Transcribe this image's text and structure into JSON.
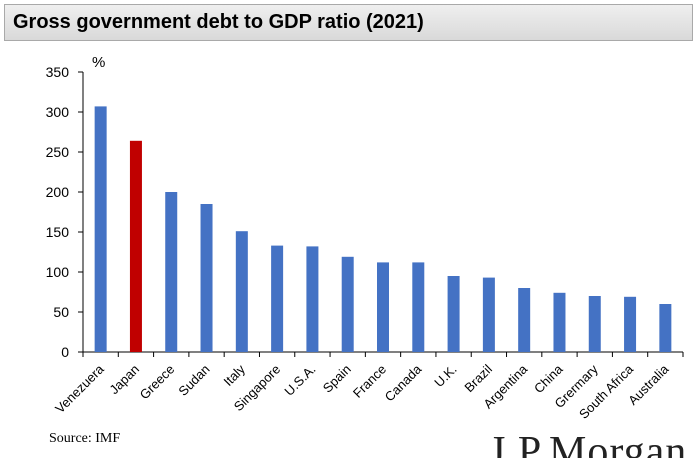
{
  "header": {
    "title": "Gross government debt to GDP ratio (2021)"
  },
  "chart_data": {
    "type": "bar",
    "title": "Gross government debt to GDP ratio (2021)",
    "ylabel": "%",
    "xlabel": "",
    "ylim": [
      0,
      350
    ],
    "yticks": [
      0,
      50,
      100,
      150,
      200,
      250,
      300,
      350
    ],
    "categories": [
      "Venezuera",
      "Japan",
      "Greece",
      "Sudan",
      "Italy",
      "Singapore",
      "U.S.A.",
      "Spain",
      "France",
      "Canada",
      "U.K.",
      "Brazil",
      "Argentina",
      "China",
      "Grermary",
      "South Africa",
      "Australia"
    ],
    "values": [
      307,
      264,
      200,
      185,
      151,
      133,
      132,
      119,
      112,
      112,
      95,
      93,
      80,
      74,
      70,
      69,
      60
    ],
    "highlight": "Japan",
    "colors": {
      "bar": "#4472c4",
      "highlight": "#c00000",
      "axis": "#000000"
    },
    "grid": false
  },
  "footer": {
    "source": "Source: IMF",
    "logo_text": "J.P.Morgan"
  }
}
